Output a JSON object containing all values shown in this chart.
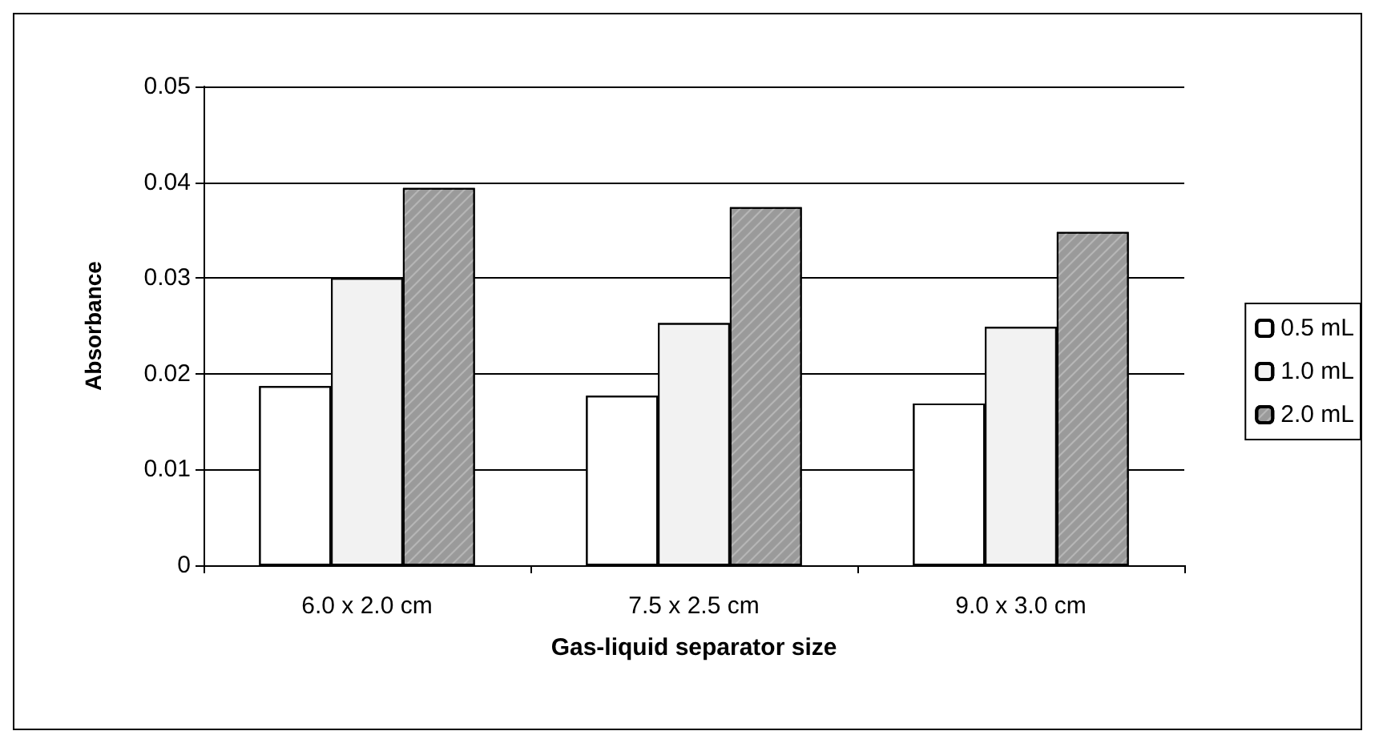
{
  "chart_data": {
    "type": "bar",
    "xlabel": "Gas-liquid separator size",
    "ylabel": "Absorbance",
    "categories": [
      "6.0 x 2.0 cm",
      "7.5 x 2.5 cm",
      "9.0 x 3.0 cm"
    ],
    "series": [
      {
        "name": "0.5 mL",
        "color": "#ffffff",
        "values": [
          0.0187,
          0.0177,
          0.0169
        ]
      },
      {
        "name": "1.0 mL",
        "color": "#f2f2f2",
        "values": [
          0.03,
          0.0253,
          0.0249
        ]
      },
      {
        "name": "2.0 mL",
        "color": "#9a9a9a",
        "values": [
          0.0394,
          0.0374,
          0.0348
        ]
      }
    ],
    "ylim": [
      0,
      0.05
    ],
    "yticks": [
      0,
      0.01,
      0.02,
      0.03,
      0.04,
      0.05
    ],
    "grid": "y",
    "legend": "right"
  }
}
